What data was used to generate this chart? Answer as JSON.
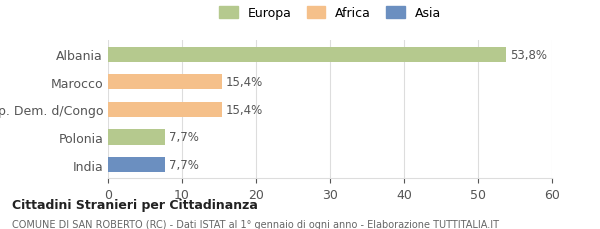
{
  "categories": [
    "Albania",
    "Marocco",
    "Rep. Dem. d/Congo",
    "Polonia",
    "India"
  ],
  "values": [
    53.8,
    15.4,
    15.4,
    7.7,
    7.7
  ],
  "bar_colors": [
    "#b5c98e",
    "#f5c08a",
    "#f5c08a",
    "#b5c98e",
    "#6b8fc0"
  ],
  "labels": [
    "53,8%",
    "15,4%",
    "15,4%",
    "7,7%",
    "7,7%"
  ],
  "xlim": [
    0,
    60
  ],
  "xticks": [
    0,
    10,
    20,
    30,
    40,
    50,
    60
  ],
  "legend_entries": [
    "Europa",
    "Africa",
    "Asia"
  ],
  "legend_colors": [
    "#b5c98e",
    "#f5c08a",
    "#6b8fc0"
  ],
  "title_bold": "Cittadini Stranieri per Cittadinanza",
  "subtitle": "COMUNE DI SAN ROBERTO (RC) - Dati ISTAT al 1° gennaio di ogni anno - Elaborazione TUTTITALIA.IT",
  "background_color": "#ffffff",
  "bar_height": 0.55,
  "grid_color": "#dddddd",
  "text_color": "#555555"
}
